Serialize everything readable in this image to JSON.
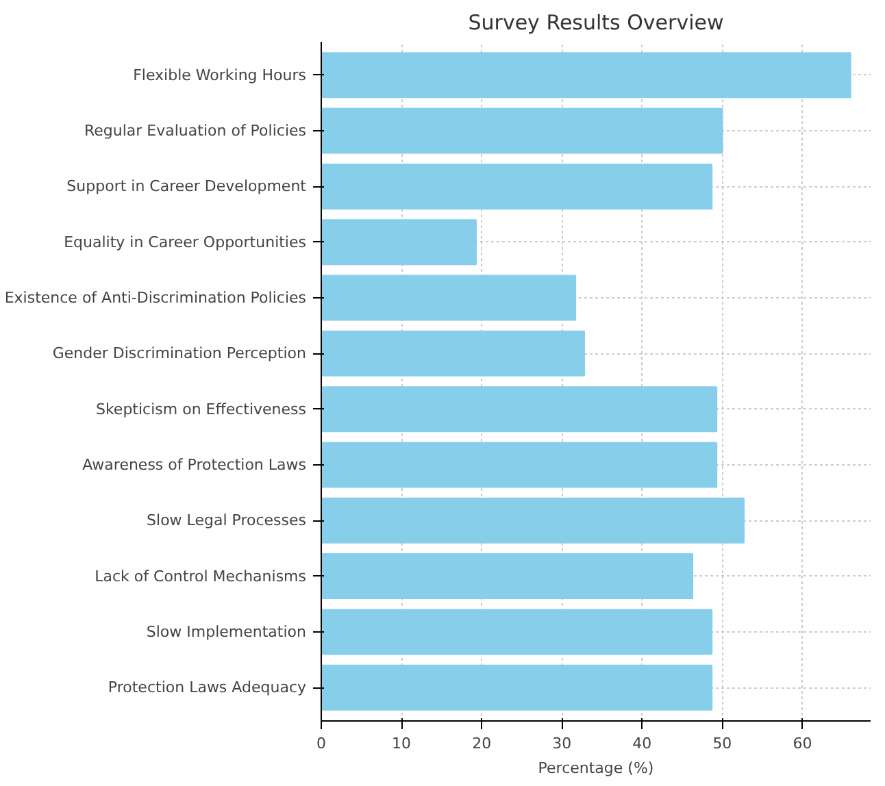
{
  "chart_data": {
    "type": "bar",
    "orientation": "horizontal",
    "title": "Survey Results Overview",
    "xlabel": "Percentage (%)",
    "categories": [
      "Flexible Working Hours",
      "Regular Evaluation of Policies",
      "Support in Career Development",
      "Equality in Career Opportunities",
      "Existence of Anti-Discrimination Policies",
      "Gender Discrimination Perception",
      "Skepticism on Effectiveness",
      "Awareness of Protection Laws",
      "Slow Legal Processes",
      "Lack of Control Mechanisms",
      "Slow Implementation",
      "Protection Laws Adequacy"
    ],
    "values": [
      66,
      50,
      48.7,
      19.3,
      31.7,
      32.8,
      49.3,
      49.3,
      52.7,
      46.3,
      48.7,
      48.7
    ],
    "color": "#87ceeb",
    "xlim": [
      0,
      68.5
    ],
    "xticks": [
      0,
      10,
      20,
      30,
      40,
      50,
      60
    ],
    "grid": true
  }
}
